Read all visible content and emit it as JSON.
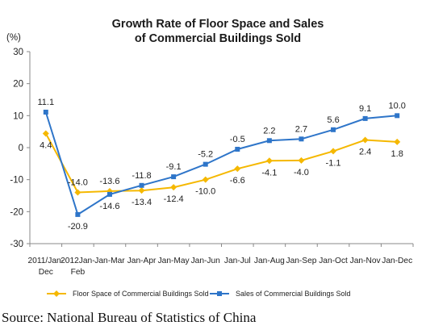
{
  "chart_data": {
    "type": "line",
    "title": [
      "Growth Rate of Floor Space and Sales",
      "of Commercial Buildings Sold"
    ],
    "unit": "(%)",
    "categories": [
      [
        "2011/Jan-",
        "Dec"
      ],
      [
        "2012Jan-",
        "Feb"
      ],
      [
        "Jan-Mar"
      ],
      [
        "Jan-Apr"
      ],
      [
        "Jan-May"
      ],
      [
        "Jan-Jun"
      ],
      [
        "Jan-Jul"
      ],
      [
        "Jan-Aug"
      ],
      [
        "Jan-Sep"
      ],
      [
        "Jan-Oct"
      ],
      [
        "Jan-Nov"
      ],
      [
        "Jan-Dec"
      ]
    ],
    "ylim": [
      -30,
      30
    ],
    "yticks": [
      30,
      20,
      10,
      0,
      -10,
      -20,
      -30
    ],
    "grid": false,
    "legend_position": "bottom",
    "series": [
      {
        "name": "Floor Space of Commercial Buildings Sold",
        "color": "#f5b800",
        "marker": "diamond",
        "values": [
          4.4,
          -14.0,
          -13.6,
          -13.4,
          -12.4,
          -10.0,
          -6.6,
          -4.1,
          -4.0,
          -1.1,
          2.4,
          1.8
        ],
        "labels": [
          "4.4",
          "-14.0",
          "-13.6",
          "-13.4",
          "-12.4",
          "-10.0",
          "-6.6",
          "-4.1",
          "-4.0",
          "-1.1",
          "2.4",
          "1.8"
        ]
      },
      {
        "name": "Sales of Commercial Buildings Sold",
        "color": "#2e75c9",
        "marker": "square",
        "values": [
          11.1,
          -20.9,
          -14.6,
          -11.8,
          -9.1,
          -5.2,
          -0.5,
          2.2,
          2.7,
          5.6,
          9.1,
          10.0
        ],
        "labels": [
          "11.1",
          "-20.9",
          "-14.6",
          "-11.8",
          "-9.1",
          "-5.2",
          "-0.5",
          "2.2",
          "2.7",
          "5.6",
          "9.1",
          "10.0"
        ]
      }
    ]
  },
  "footer": {
    "source": "Source: National Bureau of Statistics of China"
  }
}
